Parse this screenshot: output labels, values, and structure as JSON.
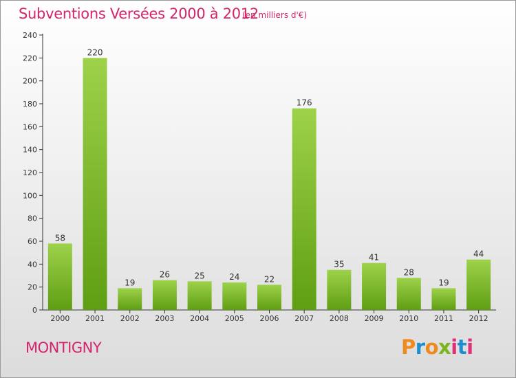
{
  "header": {
    "title": "Subventions Versées 2000 à 2012",
    "subtitle": "(en milliers d'€)"
  },
  "footer": {
    "commune": "MONTIGNY",
    "brand": {
      "letters": [
        "P",
        "r",
        "o",
        "x",
        "i",
        "t",
        "i"
      ]
    }
  },
  "colors": {
    "title": "#d6246c",
    "bar_light": "#9dd24a",
    "bar_dark": "#5f9e13",
    "axis": "#333333",
    "brand_letters": [
      "#f08a1c",
      "#1d8fd0",
      "#f08a1c",
      "#7ab51d",
      "#e0307a",
      "#1d8fd0",
      "#e0307a"
    ]
  },
  "chart_data": {
    "type": "bar",
    "categories": [
      "2000",
      "2001",
      "2002",
      "2003",
      "2004",
      "2005",
      "2006",
      "2007",
      "2008",
      "2009",
      "2010",
      "2011",
      "2012"
    ],
    "values": [
      58,
      220,
      19,
      26,
      25,
      24,
      22,
      176,
      35,
      41,
      28,
      19,
      44
    ],
    "data_labels": [
      "58",
      "220",
      "19",
      "26",
      "25",
      "24",
      "22",
      "176",
      "35",
      "41",
      "28",
      "19",
      "44"
    ],
    "yticks": [
      "0",
      "20",
      "40",
      "60",
      "80",
      "100",
      "120",
      "140",
      "160",
      "180",
      "200",
      "220",
      "240"
    ],
    "ylim": [
      0,
      240
    ],
    "grid": false,
    "legend": "none"
  }
}
